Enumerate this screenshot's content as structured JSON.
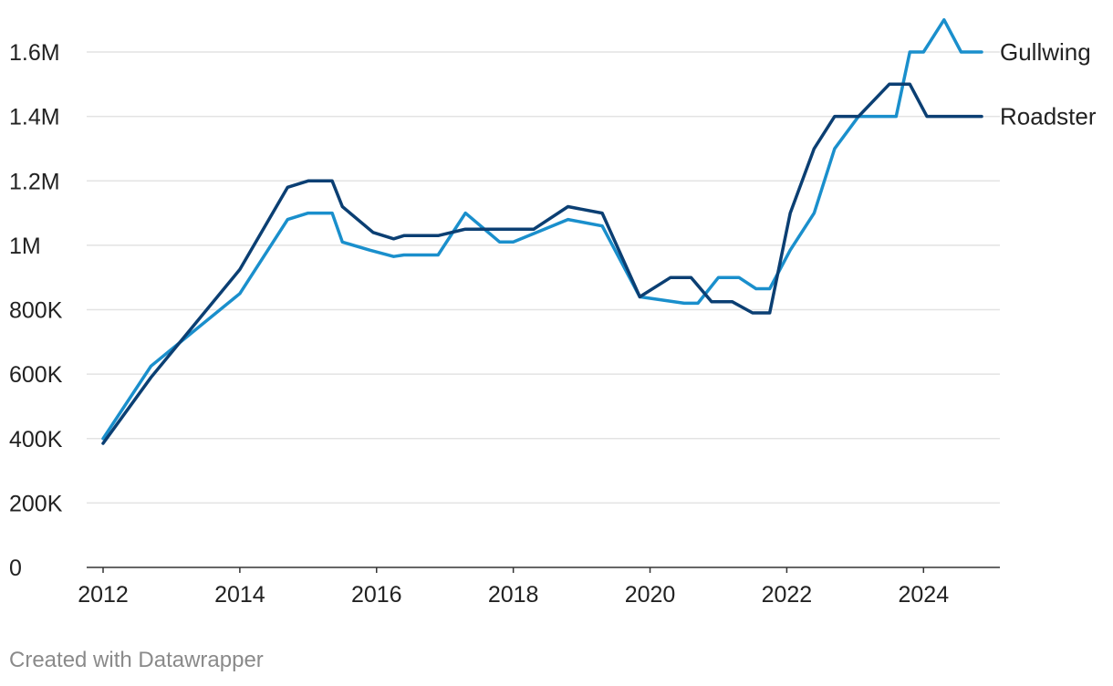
{
  "chart_data": {
    "type": "line",
    "xlim": [
      2012,
      2024.85
    ],
    "ylim": [
      0,
      1600000
    ],
    "grid": true,
    "legend_placement": "right, at line ends",
    "y_ticks": [
      {
        "value": 0,
        "label": "0"
      },
      {
        "value": 200000,
        "label": "200K"
      },
      {
        "value": 400000,
        "label": "400K"
      },
      {
        "value": 600000,
        "label": "600K"
      },
      {
        "value": 800000,
        "label": "800K"
      },
      {
        "value": 1000000,
        "label": "1M"
      },
      {
        "value": 1200000,
        "label": "1.2M"
      },
      {
        "value": 1400000,
        "label": "1.4M"
      },
      {
        "value": 1600000,
        "label": "1.6M"
      }
    ],
    "x_ticks": [
      {
        "value": 2012,
        "label": "2012"
      },
      {
        "value": 2014,
        "label": "2014"
      },
      {
        "value": 2016,
        "label": "2016"
      },
      {
        "value": 2018,
        "label": "2018"
      },
      {
        "value": 2020,
        "label": "2020"
      },
      {
        "value": 2022,
        "label": "2022"
      },
      {
        "value": 2024,
        "label": "2024"
      }
    ],
    "series": [
      {
        "name": "Gullwing",
        "color": "#1a8fcc",
        "points": [
          [
            2012.0,
            400000
          ],
          [
            2012.7,
            625000
          ],
          [
            2014.0,
            850000
          ],
          [
            2014.7,
            1080000
          ],
          [
            2015.0,
            1100000
          ],
          [
            2015.35,
            1100000
          ],
          [
            2015.5,
            1010000
          ],
          [
            2015.9,
            985000
          ],
          [
            2016.25,
            965000
          ],
          [
            2016.4,
            970000
          ],
          [
            2016.9,
            970000
          ],
          [
            2017.3,
            1100000
          ],
          [
            2017.8,
            1010000
          ],
          [
            2018.0,
            1010000
          ],
          [
            2018.8,
            1080000
          ],
          [
            2019.3,
            1060000
          ],
          [
            2019.85,
            840000
          ],
          [
            2020.5,
            820000
          ],
          [
            2020.7,
            820000
          ],
          [
            2021.0,
            900000
          ],
          [
            2021.3,
            900000
          ],
          [
            2021.55,
            865000
          ],
          [
            2021.75,
            865000
          ],
          [
            2022.05,
            985000
          ],
          [
            2022.4,
            1100000
          ],
          [
            2022.7,
            1300000
          ],
          [
            2023.05,
            1400000
          ],
          [
            2023.6,
            1400000
          ],
          [
            2023.8,
            1600000
          ],
          [
            2024.0,
            1600000
          ],
          [
            2024.3,
            1700000
          ],
          [
            2024.55,
            1600000
          ],
          [
            2024.85,
            1600000
          ]
        ]
      },
      {
        "name": "Roadster",
        "color": "#0b3f73",
        "points": [
          [
            2012.0,
            385000
          ],
          [
            2012.7,
            590000
          ],
          [
            2014.0,
            925000
          ],
          [
            2014.7,
            1180000
          ],
          [
            2015.0,
            1200000
          ],
          [
            2015.35,
            1200000
          ],
          [
            2015.5,
            1120000
          ],
          [
            2015.95,
            1040000
          ],
          [
            2016.25,
            1020000
          ],
          [
            2016.4,
            1030000
          ],
          [
            2016.9,
            1030000
          ],
          [
            2017.3,
            1050000
          ],
          [
            2017.8,
            1050000
          ],
          [
            2018.3,
            1050000
          ],
          [
            2018.8,
            1120000
          ],
          [
            2019.3,
            1100000
          ],
          [
            2019.85,
            840000
          ],
          [
            2020.3,
            900000
          ],
          [
            2020.6,
            900000
          ],
          [
            2020.9,
            825000
          ],
          [
            2021.2,
            825000
          ],
          [
            2021.5,
            790000
          ],
          [
            2021.75,
            790000
          ],
          [
            2022.05,
            1100000
          ],
          [
            2022.4,
            1300000
          ],
          [
            2022.7,
            1400000
          ],
          [
            2023.05,
            1400000
          ],
          [
            2023.5,
            1500000
          ],
          [
            2023.8,
            1500000
          ],
          [
            2024.05,
            1400000
          ],
          [
            2024.5,
            1400000
          ],
          [
            2024.85,
            1400000
          ]
        ]
      }
    ]
  },
  "footer": {
    "credit": "Created with Datawrapper"
  }
}
